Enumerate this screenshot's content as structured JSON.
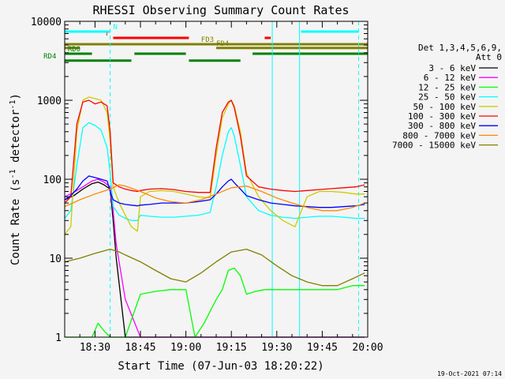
{
  "chart_data": {
    "type": "line",
    "title": "RHESSI Observing Summary Count Rates",
    "xlabel": "Start Time (07-Jun-03 18:20:22)",
    "ylabel": "Count Rate (s^-1 detector^-1)",
    "ylabel_main": "Count Rate (s",
    "ylabel_sup1": "-1",
    "ylabel_mid": " detector",
    "ylabel_sup2": "-1",
    "ylabel_end": ")",
    "yscale": "log",
    "ylim": [
      1,
      10000
    ],
    "xlim_minutes": [
      0,
      100
    ],
    "x_ticks": [
      {
        "t": 10,
        "label": "18:30"
      },
      {
        "t": 25,
        "label": "18:45"
      },
      {
        "t": 40,
        "label": "19:00"
      },
      {
        "t": 55,
        "label": "19:15"
      },
      {
        "t": 70,
        "label": "19:30"
      },
      {
        "t": 85,
        "label": "19:45"
      },
      {
        "t": 100,
        "label": "20:00"
      }
    ],
    "y_ticks": [
      {
        "v": 1,
        "label": "1"
      },
      {
        "v": 10,
        "label": "10"
      },
      {
        "v": 100,
        "label": "100"
      },
      {
        "v": 1000,
        "label": "1000"
      },
      {
        "v": 10000,
        "label": "10000"
      }
    ],
    "legend_header": [
      "Det 1,3,4,5,6,9,",
      "Att 0"
    ],
    "series": [
      {
        "name": "3 - 6 keV",
        "color": "#000000",
        "t": [
          0,
          3,
          6,
          9,
          11,
          13,
          15,
          16,
          17,
          20,
          25,
          30,
          35,
          38,
          40,
          43,
          46,
          50,
          52,
          54,
          56,
          58,
          60,
          63,
          66,
          69,
          72,
          74,
          76,
          78,
          80,
          82,
          85,
          90,
          95,
          99
        ],
        "v": [
          55,
          62,
          75,
          88,
          92,
          85,
          75,
          30,
          10,
          1,
          1,
          1,
          1,
          1,
          1,
          1,
          1,
          1,
          1,
          1,
          1,
          1,
          1,
          1,
          1,
          1,
          1,
          1,
          1,
          1,
          1,
          1,
          1,
          1,
          1,
          1
        ]
      },
      {
        "name": "6 - 12 keV",
        "color": "#ff00ff",
        "t": [
          0,
          3,
          6,
          9,
          11,
          13,
          15,
          16,
          17,
          20,
          25,
          30,
          35,
          38,
          40,
          43,
          46,
          50,
          52,
          54,
          56,
          58,
          60,
          63,
          66,
          69,
          72,
          74,
          76,
          78,
          80,
          82,
          85,
          90,
          95,
          99
        ],
        "v": [
          60,
          68,
          80,
          95,
          100,
          92,
          80,
          40,
          15,
          3,
          1,
          1,
          1,
          1,
          1,
          1,
          1,
          1,
          1,
          1,
          1,
          1,
          1,
          1,
          1,
          1,
          1,
          1,
          1,
          1,
          1,
          1,
          1,
          1,
          1,
          1
        ]
      },
      {
        "name": "12 - 25 keV",
        "color": "#00ff00",
        "t": [
          0,
          3,
          6,
          9,
          11,
          13,
          15,
          16,
          17,
          20,
          25,
          30,
          35,
          38,
          40,
          43,
          46,
          50,
          52,
          54,
          56,
          58,
          60,
          63,
          66,
          69,
          72,
          74,
          76,
          78,
          80,
          82,
          85,
          90,
          95,
          99
        ],
        "v": [
          1,
          1,
          1,
          1,
          1.5,
          1.2,
          1,
          1,
          1,
          1,
          3.5,
          3.8,
          4,
          4,
          4,
          1,
          1.5,
          3,
          4,
          7,
          7.5,
          6,
          3.5,
          3.8,
          4,
          4,
          4,
          4,
          4,
          4,
          4,
          4,
          4,
          4,
          4.5,
          4.5
        ]
      },
      {
        "name": "25 - 50 keV",
        "color": "#00ffff",
        "t": [
          0,
          2,
          4,
          6,
          8,
          10,
          12,
          14,
          15,
          16,
          18,
          20,
          22,
          24,
          25,
          28,
          32,
          36,
          40,
          44,
          48,
          50,
          52,
          54,
          55,
          56,
          58,
          60,
          64,
          68,
          72,
          76,
          80,
          84,
          88,
          92,
          96,
          99
        ],
        "v": [
          32,
          40,
          150,
          450,
          520,
          480,
          420,
          250,
          120,
          45,
          35,
          32,
          30,
          30,
          35,
          34,
          33,
          33,
          34,
          35,
          38,
          80,
          200,
          400,
          450,
          350,
          150,
          60,
          40,
          35,
          33,
          32,
          33,
          34,
          34,
          33,
          32,
          32
        ]
      },
      {
        "name": "50 - 100 keV",
        "color": "#cccc00",
        "t": [
          0,
          2,
          4,
          6,
          8,
          10,
          12,
          14,
          15,
          16,
          18,
          20,
          22,
          24,
          25,
          28,
          32,
          36,
          40,
          44,
          48,
          50,
          52,
          54,
          55,
          56,
          58,
          60,
          64,
          68,
          72,
          76,
          80,
          84,
          88,
          92,
          96,
          99
        ],
        "v": [
          20,
          25,
          400,
          1000,
          1100,
          1050,
          1000,
          700,
          300,
          80,
          50,
          35,
          25,
          22,
          60,
          70,
          72,
          70,
          65,
          60,
          58,
          200,
          600,
          900,
          1000,
          850,
          400,
          120,
          60,
          40,
          30,
          25,
          60,
          70,
          70,
          68,
          65,
          65
        ]
      },
      {
        "name": "100 - 300 keV",
        "color": "#ff0000",
        "t": [
          0,
          2,
          4,
          6,
          8,
          10,
          12,
          14,
          15,
          16,
          18,
          20,
          22,
          24,
          25,
          28,
          32,
          36,
          40,
          44,
          48,
          50,
          52,
          54,
          55,
          56,
          58,
          60,
          64,
          68,
          72,
          76,
          80,
          84,
          88,
          92,
          96,
          99
        ],
        "v": [
          50,
          60,
          500,
          950,
          1000,
          900,
          950,
          850,
          400,
          90,
          80,
          75,
          72,
          70,
          72,
          75,
          76,
          74,
          70,
          68,
          68,
          250,
          700,
          950,
          1000,
          800,
          350,
          110,
          80,
          75,
          72,
          70,
          72,
          74,
          76,
          78,
          80,
          85
        ]
      },
      {
        "name": "300 - 800 keV",
        "color": "#0000ff",
        "t": [
          0,
          2,
          4,
          6,
          8,
          10,
          12,
          14,
          15,
          16,
          18,
          20,
          22,
          24,
          25,
          28,
          32,
          36,
          40,
          44,
          48,
          50,
          52,
          54,
          55,
          56,
          58,
          60,
          64,
          68,
          72,
          76,
          80,
          84,
          88,
          92,
          96,
          99
        ],
        "v": [
          55,
          62,
          75,
          95,
          110,
          105,
          100,
          95,
          70,
          55,
          50,
          48,
          47,
          46,
          47,
          48,
          50,
          50,
          50,
          52,
          55,
          65,
          80,
          95,
          100,
          90,
          75,
          62,
          55,
          50,
          48,
          46,
          45,
          44,
          44,
          45,
          46,
          48
        ]
      },
      {
        "name": "800 - 7000 keV",
        "color": "#ff8800",
        "t": [
          0,
          5,
          10,
          15,
          18,
          20,
          25,
          30,
          35,
          40,
          45,
          50,
          55,
          60,
          65,
          70,
          75,
          80,
          85,
          90,
          95,
          99
        ],
        "v": [
          45,
          55,
          65,
          75,
          85,
          82,
          70,
          58,
          52,
          50,
          55,
          65,
          78,
          82,
          70,
          58,
          50,
          44,
          40,
          40,
          44,
          50
        ]
      },
      {
        "name": "7000 - 15000 keV",
        "color": "#808000",
        "t": [
          0,
          5,
          10,
          15,
          18,
          20,
          25,
          30,
          35,
          40,
          45,
          50,
          55,
          60,
          65,
          70,
          75,
          80,
          85,
          90,
          95,
          99
        ],
        "v": [
          9,
          10,
          11.5,
          13,
          12,
          11,
          9,
          7,
          5.5,
          5,
          6.5,
          9,
          12,
          13,
          11,
          8,
          6,
          5,
          4.5,
          4.5,
          5.5,
          6.5
        ]
      }
    ],
    "time_markers": [
      {
        "t": 0,
        "style": "solid"
      },
      {
        "t": 15,
        "style": "dashed"
      },
      {
        "t": 68.5,
        "style": "solid"
      },
      {
        "t": 97,
        "style": "dashed"
      },
      {
        "t": 77.5,
        "style": "solid"
      }
    ],
    "status_bars": [
      {
        "row": 1,
        "color": "#ff0000",
        "segments": [
          [
            16,
            41
          ],
          [
            66,
            68
          ]
        ],
        "label": "F",
        "label_t": 13.5
      },
      {
        "row": 0,
        "color": "#00ffff",
        "segments": [
          [
            0,
            15
          ],
          [
            78,
            97
          ]
        ],
        "label": "N",
        "label_t": 16
      },
      {
        "row": 2,
        "color": "#808000",
        "segments": [
          [
            0,
            100
          ]
        ],
        "label": "FD3",
        "label_t": 45
      },
      {
        "row": 2.6,
        "color": "#808000",
        "segments": [
          [
            0,
            5
          ],
          [
            50,
            100
          ]
        ],
        "label": "FD4",
        "label_t": 50
      },
      {
        "row": 3.5,
        "color": "#008000",
        "segments": [
          [
            0,
            9
          ],
          [
            23,
            40
          ],
          [
            62,
            100
          ]
        ],
        "label": "RD0",
        "label_t": 1
      },
      {
        "row": 4.6,
        "color": "#008000",
        "segments": [
          [
            0,
            22
          ],
          [
            41,
            58
          ]
        ],
        "label": "RD4",
        "label_t": -7
      }
    ],
    "footer_date": "19-Oct-2021 07:14"
  }
}
